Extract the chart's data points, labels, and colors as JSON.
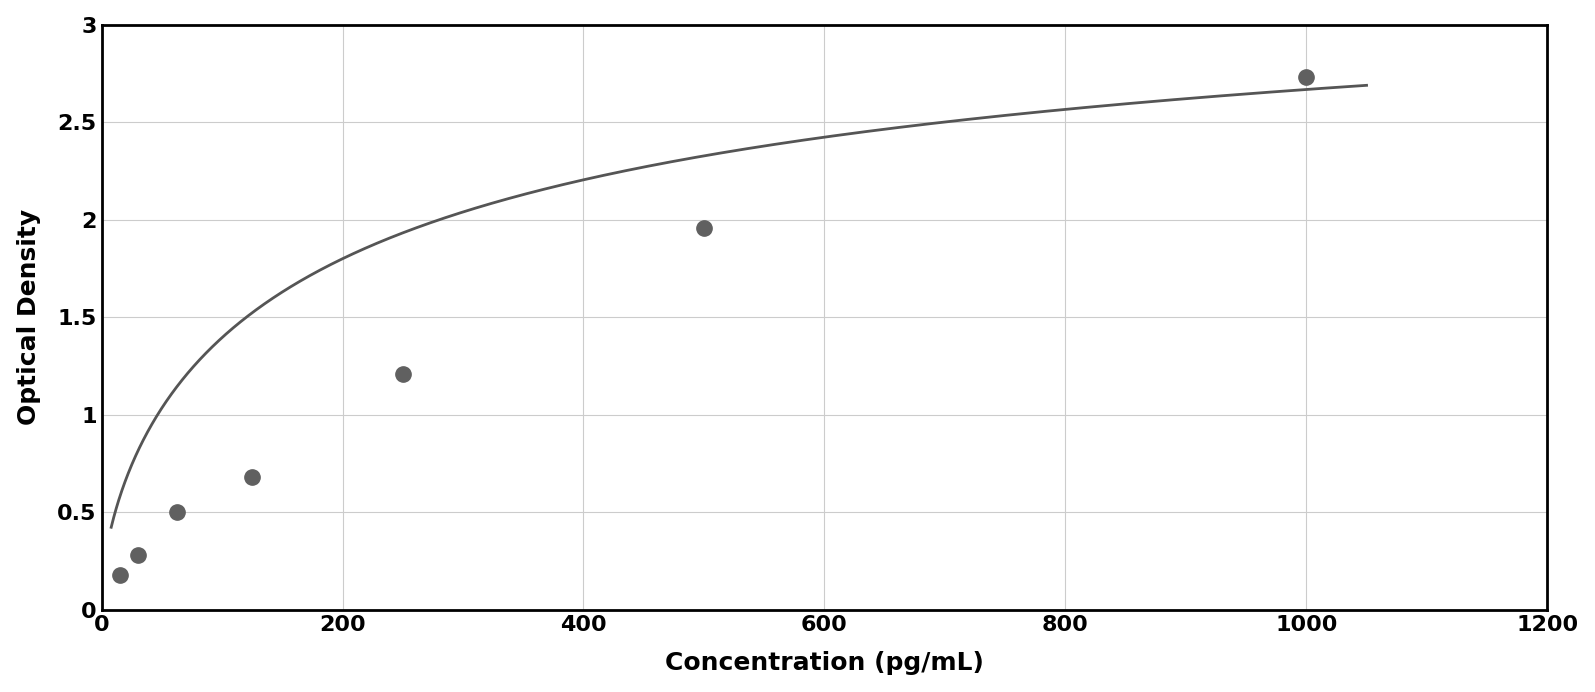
{
  "scatter_x": [
    15,
    30,
    62.5,
    125,
    250,
    500,
    1000
  ],
  "scatter_y": [
    0.18,
    0.28,
    0.5,
    0.68,
    1.21,
    1.96,
    2.73
  ],
  "point_color": "#606060",
  "line_color": "#555555",
  "xlabel": "Concentration (pg/mL)",
  "ylabel": "Optical Density",
  "xlim": [
    0,
    1200
  ],
  "ylim": [
    0,
    3
  ],
  "xticks": [
    0,
    200,
    400,
    600,
    800,
    1000,
    1200
  ],
  "yticks": [
    0,
    0.5,
    1.0,
    1.5,
    2.0,
    2.5,
    3.0
  ],
  "ytick_labels": [
    "0",
    "0.5",
    "1",
    "1.5",
    "2",
    "2.5",
    "3"
  ],
  "xlabel_fontsize": 18,
  "ylabel_fontsize": 18,
  "tick_fontsize": 16,
  "marker_size": 11,
  "line_width": 2.0,
  "grid_color": "#cccccc",
  "background_color": "#ffffff",
  "figure_bg": "#ffffff",
  "curve_x_end": 1050
}
